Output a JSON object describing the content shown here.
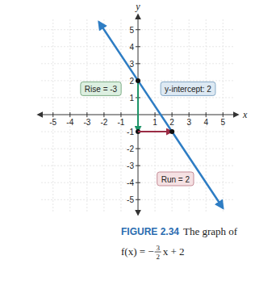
{
  "chart_data": {
    "type": "line",
    "title": "FIGURE 2.34",
    "subtitle": "The graph of",
    "formula": {
      "lhs": "f(x) = −",
      "numerator": "3",
      "denominator": "2",
      "rhs": "x + 2"
    },
    "x_label": "x",
    "y_label": "y",
    "x": [
      -2.3,
      0,
      2,
      5
    ],
    "values": [
      5.45,
      2,
      -1,
      -5.5
    ],
    "color": "#2e7dc4",
    "xlim": [
      -5.7,
      5.7
    ],
    "ylim": [
      -5.7,
      5.7
    ],
    "xticks": [
      -5,
      -4,
      -3,
      -2,
      -1,
      1,
      2,
      3,
      4,
      5
    ],
    "yticks": [
      -5,
      -4,
      -3,
      -2,
      -1,
      1,
      2,
      3,
      4,
      5
    ],
    "grid": true,
    "annotations": [
      {
        "text": "Rise = -3",
        "x": [
          0,
          0
        ],
        "y": [
          2,
          -1
        ],
        "color": "#1e9468"
      },
      {
        "text": "y-intercept: 2",
        "x": 0,
        "y": 2
      },
      {
        "text": "Run = 2",
        "x": [
          0,
          2
        ],
        "y": [
          -1,
          -1
        ],
        "color": "#9b2c45"
      }
    ]
  }
}
